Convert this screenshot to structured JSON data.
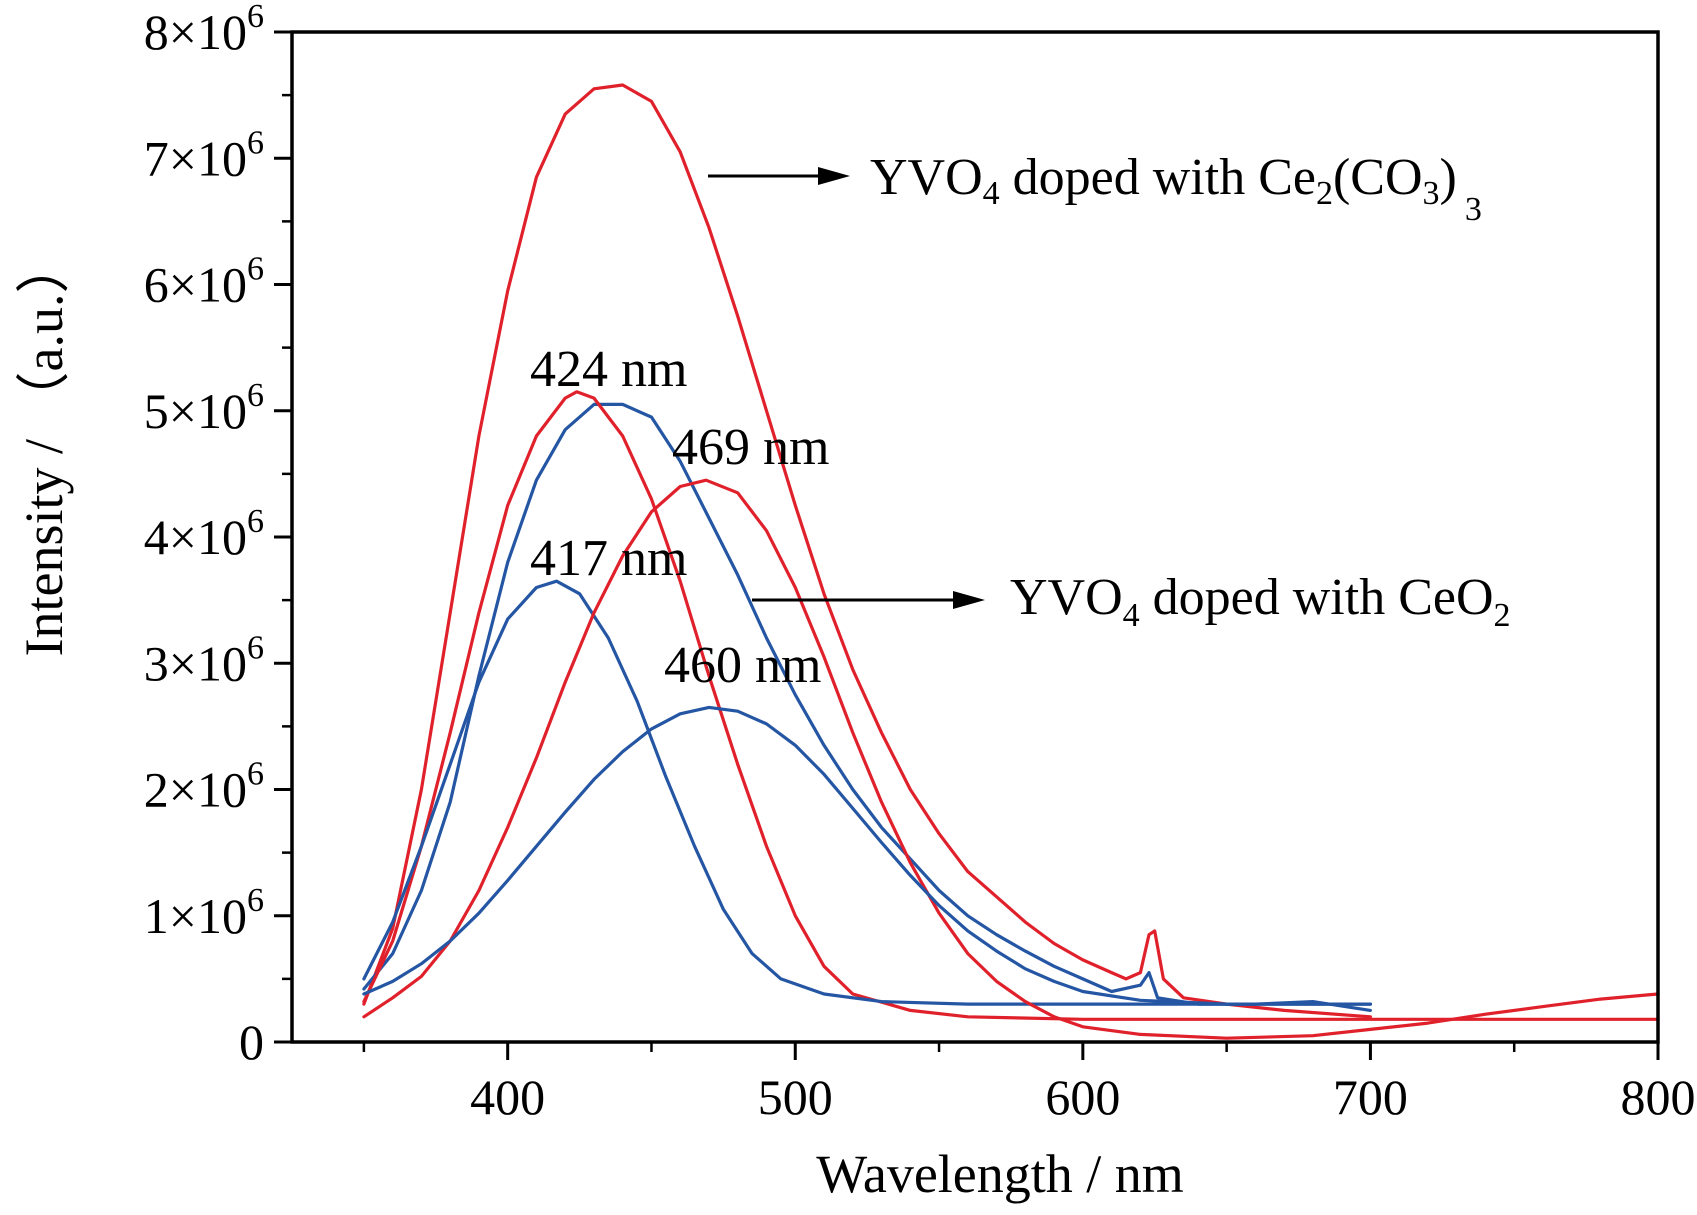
{
  "chart_data": {
    "type": "line",
    "xlabel": "Wavelength / nm",
    "ylabel": "Intensity / （a.u.）",
    "xlim": [
      325,
      800
    ],
    "ylim": [
      0,
      8000000
    ],
    "xticks": [
      400,
      500,
      600,
      700,
      800
    ],
    "xtick_labels": [
      "400",
      "500",
      "600",
      "700",
      "800"
    ],
    "yticks": [
      0,
      1000000,
      2000000,
      3000000,
      4000000,
      5000000,
      6000000,
      7000000,
      8000000
    ],
    "ytick_labels": [
      {
        "m": "0",
        "e": ""
      },
      {
        "m": "1×10",
        "e": "6"
      },
      {
        "m": "2×10",
        "e": "6"
      },
      {
        "m": "3×10",
        "e": "6"
      },
      {
        "m": "4×10",
        "e": "6"
      },
      {
        "m": "5×10",
        "e": "6"
      },
      {
        "m": "6×10",
        "e": "6"
      },
      {
        "m": "7×10",
        "e": "6"
      },
      {
        "m": "8×10",
        "e": "6"
      }
    ],
    "grid": false,
    "colors": {
      "red": "#e0212b",
      "blue": "#2456a4",
      "axis": "#000000"
    },
    "series": [
      {
        "color": "#e0212b",
        "points": [
          [
            350,
            0.3
          ],
          [
            360,
            0.9
          ],
          [
            370,
            2.0
          ],
          [
            380,
            3.4
          ],
          [
            390,
            4.8
          ],
          [
            400,
            5.95
          ],
          [
            410,
            6.85
          ],
          [
            420,
            7.35
          ],
          [
            430,
            7.55
          ],
          [
            440,
            7.58
          ],
          [
            450,
            7.45
          ],
          [
            460,
            7.05
          ],
          [
            470,
            6.45
          ],
          [
            480,
            5.75
          ],
          [
            490,
            5.0
          ],
          [
            500,
            4.25
          ],
          [
            510,
            3.55
          ],
          [
            520,
            2.95
          ],
          [
            530,
            2.45
          ],
          [
            540,
            2.0
          ],
          [
            550,
            1.65
          ],
          [
            560,
            1.35
          ],
          [
            570,
            1.15
          ],
          [
            580,
            0.95
          ],
          [
            590,
            0.78
          ],
          [
            600,
            0.65
          ],
          [
            610,
            0.55
          ],
          [
            615,
            0.5
          ],
          [
            620,
            0.55
          ],
          [
            623,
            0.85
          ],
          [
            625,
            0.88
          ],
          [
            628,
            0.5
          ],
          [
            635,
            0.35
          ],
          [
            650,
            0.3
          ],
          [
            670,
            0.25
          ],
          [
            700,
            0.2
          ]
        ]
      },
      {
        "color": "#2456a4",
        "points": [
          [
            350,
            0.42
          ],
          [
            360,
            0.7
          ],
          [
            370,
            1.2
          ],
          [
            380,
            1.9
          ],
          [
            390,
            2.9
          ],
          [
            400,
            3.8
          ],
          [
            410,
            4.45
          ],
          [
            420,
            4.85
          ],
          [
            430,
            5.05
          ],
          [
            440,
            5.05
          ],
          [
            450,
            4.95
          ],
          [
            460,
            4.6
          ],
          [
            470,
            4.15
          ],
          [
            480,
            3.7
          ],
          [
            490,
            3.2
          ],
          [
            500,
            2.75
          ],
          [
            510,
            2.35
          ],
          [
            520,
            2.0
          ],
          [
            530,
            1.7
          ],
          [
            540,
            1.45
          ],
          [
            550,
            1.2
          ],
          [
            560,
            1.0
          ],
          [
            570,
            0.85
          ],
          [
            580,
            0.72
          ],
          [
            590,
            0.6
          ],
          [
            600,
            0.5
          ],
          [
            610,
            0.4
          ],
          [
            620,
            0.45
          ],
          [
            623,
            0.55
          ],
          [
            626,
            0.35
          ],
          [
            640,
            0.3
          ],
          [
            660,
            0.3
          ],
          [
            680,
            0.32
          ],
          [
            700,
            0.25
          ]
        ]
      },
      {
        "color": "#e0212b",
        "points": [
          [
            350,
            0.32
          ],
          [
            360,
            0.8
          ],
          [
            370,
            1.55
          ],
          [
            380,
            2.45
          ],
          [
            390,
            3.4
          ],
          [
            400,
            4.25
          ],
          [
            410,
            4.8
          ],
          [
            420,
            5.1
          ],
          [
            424,
            5.15
          ],
          [
            430,
            5.1
          ],
          [
            440,
            4.8
          ],
          [
            450,
            4.3
          ],
          [
            460,
            3.65
          ],
          [
            470,
            2.9
          ],
          [
            480,
            2.2
          ],
          [
            490,
            1.55
          ],
          [
            500,
            1.0
          ],
          [
            510,
            0.6
          ],
          [
            520,
            0.38
          ],
          [
            540,
            0.25
          ],
          [
            560,
            0.2
          ],
          [
            600,
            0.18
          ],
          [
            650,
            0.18
          ],
          [
            700,
            0.18
          ],
          [
            800,
            0.18
          ]
        ]
      },
      {
        "color": "#2456a4",
        "points": [
          [
            350,
            0.5
          ],
          [
            360,
            0.95
          ],
          [
            370,
            1.55
          ],
          [
            380,
            2.2
          ],
          [
            390,
            2.85
          ],
          [
            400,
            3.35
          ],
          [
            410,
            3.6
          ],
          [
            417,
            3.65
          ],
          [
            425,
            3.55
          ],
          [
            435,
            3.2
          ],
          [
            445,
            2.7
          ],
          [
            455,
            2.1
          ],
          [
            465,
            1.55
          ],
          [
            475,
            1.05
          ],
          [
            485,
            0.7
          ],
          [
            495,
            0.5
          ],
          [
            510,
            0.38
          ],
          [
            530,
            0.32
          ],
          [
            560,
            0.3
          ],
          [
            600,
            0.3
          ],
          [
            650,
            0.3
          ],
          [
            700,
            0.3
          ]
        ]
      },
      {
        "color": "#e0212b",
        "points": [
          [
            350,
            0.2
          ],
          [
            360,
            0.35
          ],
          [
            370,
            0.52
          ],
          [
            380,
            0.8
          ],
          [
            390,
            1.2
          ],
          [
            400,
            1.7
          ],
          [
            410,
            2.25
          ],
          [
            420,
            2.85
          ],
          [
            430,
            3.4
          ],
          [
            440,
            3.85
          ],
          [
            450,
            4.2
          ],
          [
            460,
            4.4
          ],
          [
            469,
            4.45
          ],
          [
            480,
            4.35
          ],
          [
            490,
            4.05
          ],
          [
            500,
            3.6
          ],
          [
            510,
            3.05
          ],
          [
            520,
            2.45
          ],
          [
            530,
            1.9
          ],
          [
            540,
            1.42
          ],
          [
            550,
            1.02
          ],
          [
            560,
            0.7
          ],
          [
            570,
            0.48
          ],
          [
            580,
            0.32
          ],
          [
            590,
            0.2
          ],
          [
            600,
            0.12
          ],
          [
            620,
            0.06
          ],
          [
            650,
            0.03
          ],
          [
            680,
            0.05
          ],
          [
            700,
            0.1
          ],
          [
            720,
            0.15
          ],
          [
            740,
            0.22
          ],
          [
            760,
            0.28
          ],
          [
            780,
            0.34
          ],
          [
            800,
            0.38
          ]
        ]
      },
      {
        "color": "#2456a4",
        "points": [
          [
            350,
            0.38
          ],
          [
            360,
            0.48
          ],
          [
            370,
            0.62
          ],
          [
            380,
            0.8
          ],
          [
            390,
            1.02
          ],
          [
            400,
            1.28
          ],
          [
            410,
            1.55
          ],
          [
            420,
            1.82
          ],
          [
            430,
            2.08
          ],
          [
            440,
            2.3
          ],
          [
            450,
            2.48
          ],
          [
            460,
            2.6
          ],
          [
            470,
            2.65
          ],
          [
            480,
            2.62
          ],
          [
            490,
            2.52
          ],
          [
            500,
            2.35
          ],
          [
            510,
            2.12
          ],
          [
            520,
            1.85
          ],
          [
            530,
            1.58
          ],
          [
            540,
            1.32
          ],
          [
            550,
            1.08
          ],
          [
            560,
            0.88
          ],
          [
            570,
            0.72
          ],
          [
            580,
            0.58
          ],
          [
            590,
            0.48
          ],
          [
            600,
            0.4
          ],
          [
            620,
            0.33
          ],
          [
            650,
            0.3
          ],
          [
            700,
            0.3
          ]
        ]
      }
    ],
    "annotations": {
      "peak_424": "424 nm",
      "peak_469": "469 nm",
      "peak_417": "417 nm",
      "peak_460": "460 nm",
      "label_ce2co3": {
        "pre": "YVO",
        "s1": "4",
        "mid": " doped with Ce",
        "s2": "2",
        "mid2": "(CO",
        "s3": "3",
        "mid3": ")",
        "s4": "3"
      },
      "label_ceo2": {
        "pre": "YVO",
        "s1": "4",
        "mid": " doped with CeO",
        "s2": "2"
      }
    }
  }
}
